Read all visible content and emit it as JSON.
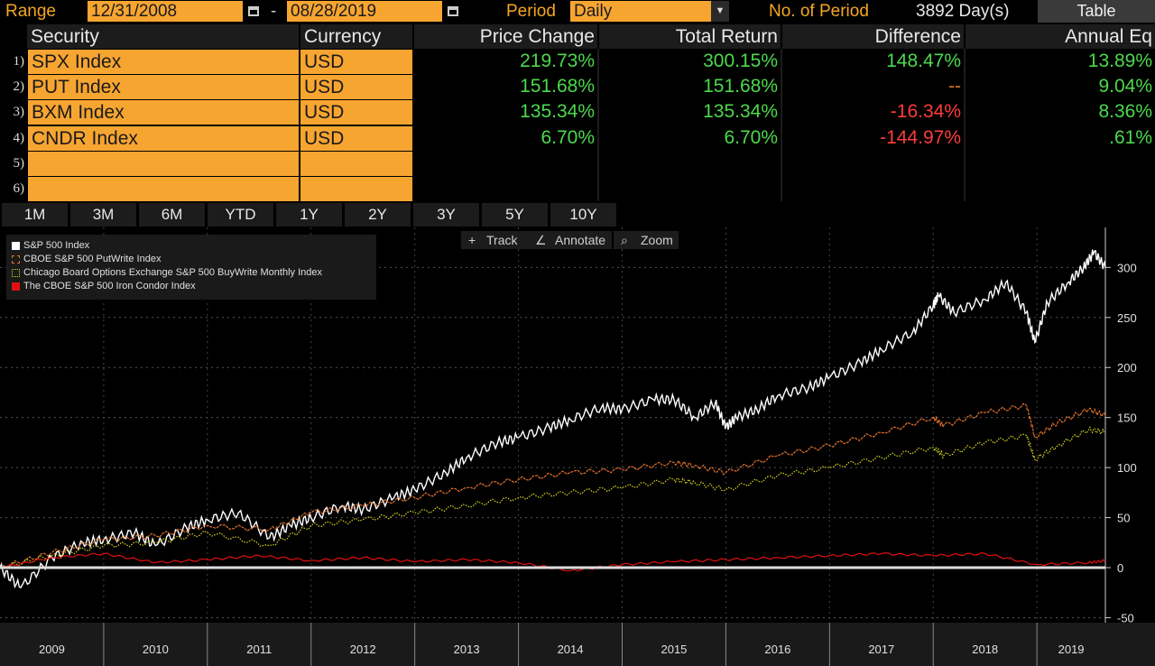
{
  "range": {
    "label": "Range",
    "start": "12/31/2008",
    "dash": "-",
    "end": "08/28/2019",
    "period_label": "Period",
    "period_value": "Daily",
    "num_label": "No. of Period",
    "num_value": "3892 Day(s)",
    "table_button": "Table"
  },
  "table": {
    "headers": [
      "Security",
      "Currency",
      "Price Change",
      "Total Return",
      "Difference",
      "Annual Eq"
    ],
    "rows": [
      {
        "num": "1)",
        "security": "SPX Index",
        "currency": "USD",
        "price_change": "219.73%",
        "total_return": "300.15%",
        "difference": "148.47%",
        "annual_eq": "13.89%",
        "diff_state": "pos"
      },
      {
        "num": "2)",
        "security": "PUT Index",
        "currency": "USD",
        "price_change": "151.68%",
        "total_return": "151.68%",
        "difference": "--",
        "annual_eq": "9.04%",
        "diff_state": "neu"
      },
      {
        "num": "3)",
        "security": "BXM Index",
        "currency": "USD",
        "price_change": "135.34%",
        "total_return": "135.34%",
        "difference": "-16.34%",
        "annual_eq": "8.36%",
        "diff_state": "neg"
      },
      {
        "num": "4)",
        "security": "CNDR Index",
        "currency": "USD",
        "price_change": "6.70%",
        "total_return": "6.70%",
        "difference": "-144.97%",
        "annual_eq": ".61%",
        "diff_state": "neg"
      },
      {
        "num": "5)",
        "security": "",
        "currency": "",
        "price_change": "",
        "total_return": "",
        "difference": "",
        "annual_eq": "",
        "diff_state": "pos"
      },
      {
        "num": "6)",
        "security": "",
        "currency": "",
        "price_change": "",
        "total_return": "",
        "difference": "",
        "annual_eq": "",
        "diff_state": "pos"
      }
    ]
  },
  "periods": [
    "1M",
    "3M",
    "6M",
    "YTD",
    "1Y",
    "2Y",
    "3Y",
    "5Y",
    "10Y"
  ],
  "tools": {
    "track": "Track",
    "annotate": "Annotate",
    "zoom": "Zoom"
  },
  "colors": {
    "accent": "#f7a531",
    "positive": "#4cd94c",
    "negative": "#ff3b3b",
    "spx": "#ffffff",
    "put": "#e0702a",
    "bxm": "#d8d820",
    "cndr": "#e01010"
  },
  "chart_data": {
    "type": "line",
    "legend": "top-left",
    "grid": true,
    "x_ticks": [
      "2009",
      "2010",
      "2011",
      "2012",
      "2013",
      "2014",
      "2015",
      "2016",
      "2017",
      "2018",
      "2019"
    ],
    "y_ticks": [
      300,
      250,
      200,
      150,
      100,
      50,
      0,
      -50
    ],
    "ylim": [
      -55,
      340
    ],
    "xlim": [
      2009.0,
      2019.66
    ],
    "series": [
      {
        "name": "S&P 500 Index",
        "color": "#ffffff",
        "x": [
          2009.0,
          2009.2,
          2009.5,
          2009.8,
          2010.0,
          2010.3,
          2010.5,
          2010.8,
          2011.0,
          2011.3,
          2011.6,
          2011.8,
          2012.0,
          2012.3,
          2012.5,
          2012.8,
          2013.0,
          2013.3,
          2013.5,
          2013.8,
          2014.0,
          2014.3,
          2014.5,
          2014.8,
          2015.0,
          2015.3,
          2015.5,
          2015.7,
          2015.9,
          2016.0,
          2016.1,
          2016.3,
          2016.5,
          2016.8,
          2017.0,
          2017.3,
          2017.5,
          2017.8,
          2018.0,
          2018.05,
          2018.2,
          2018.5,
          2018.7,
          2018.9,
          2018.98,
          2019.1,
          2019.3,
          2019.45,
          2019.55,
          2019.66
        ],
        "values": [
          0,
          -20,
          10,
          25,
          28,
          35,
          22,
          40,
          48,
          55,
          30,
          42,
          50,
          62,
          58,
          70,
          78,
          95,
          110,
          125,
          130,
          140,
          148,
          160,
          158,
          168,
          168,
          150,
          165,
          140,
          150,
          158,
          172,
          180,
          190,
          205,
          218,
          235,
          262,
          272,
          255,
          268,
          285,
          255,
          225,
          265,
          285,
          300,
          315,
          300
        ]
      },
      {
        "name": "CBOE S&P 500 PutWrite Index",
        "color": "#e0702a",
        "x": [
          2009.0,
          2009.5,
          2010.0,
          2010.5,
          2011.0,
          2011.6,
          2012.0,
          2012.5,
          2013.0,
          2013.5,
          2014.0,
          2014.5,
          2015.0,
          2015.5,
          2015.7,
          2016.0,
          2016.5,
          2017.0,
          2017.5,
          2018.0,
          2018.1,
          2018.5,
          2018.9,
          2018.98,
          2019.2,
          2019.5,
          2019.66
        ],
        "values": [
          0,
          15,
          28,
          32,
          42,
          38,
          55,
          62,
          70,
          80,
          88,
          95,
          98,
          105,
          102,
          95,
          112,
          122,
          135,
          150,
          142,
          155,
          162,
          130,
          145,
          158,
          152
        ]
      },
      {
        "name": "Chicago Board Options Exchange S&P 500 BuyWrite Monthly Index",
        "color": "#d8d820",
        "x": [
          2009.0,
          2009.5,
          2010.0,
          2010.5,
          2011.0,
          2011.6,
          2012.0,
          2012.5,
          2013.0,
          2013.5,
          2014.0,
          2014.5,
          2015.0,
          2015.5,
          2015.7,
          2016.0,
          2016.5,
          2017.0,
          2017.5,
          2018.0,
          2018.1,
          2018.5,
          2018.9,
          2018.98,
          2019.2,
          2019.5,
          2019.66
        ],
        "values": [
          0,
          12,
          22,
          25,
          35,
          22,
          42,
          48,
          55,
          62,
          70,
          75,
          80,
          88,
          85,
          78,
          92,
          100,
          110,
          120,
          112,
          125,
          132,
          108,
          122,
          138,
          135
        ]
      },
      {
        "name": "The CBOE S&P 500 Iron Condor Index",
        "color": "#e01010",
        "x": [
          2009.0,
          2009.5,
          2010.0,
          2010.5,
          2011.0,
          2011.5,
          2012.0,
          2012.5,
          2013.0,
          2013.5,
          2014.0,
          2014.5,
          2015.0,
          2015.5,
          2016.0,
          2016.5,
          2017.0,
          2017.5,
          2018.0,
          2018.5,
          2019.0,
          2019.5,
          2019.66
        ],
        "values": [
          0,
          10,
          14,
          5,
          8,
          12,
          7,
          10,
          6,
          8,
          5,
          -3,
          3,
          6,
          8,
          10,
          12,
          14,
          12,
          14,
          3,
          5,
          7
        ]
      }
    ]
  }
}
